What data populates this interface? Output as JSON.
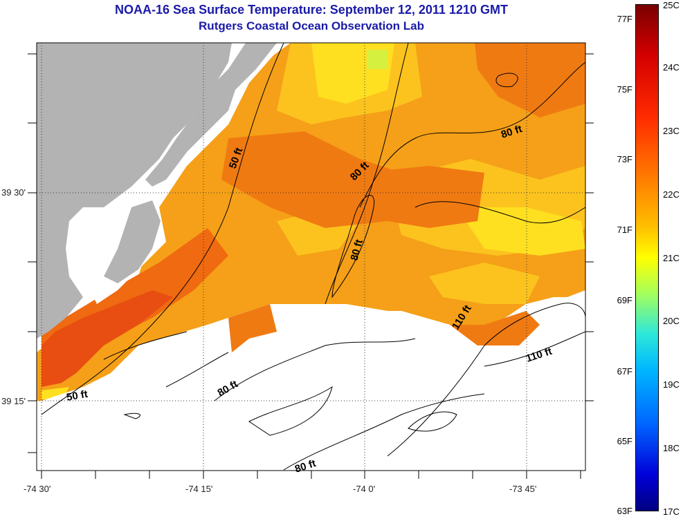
{
  "title": "NOAA-16 Sea Surface Temperature:  September 12, 2011 1210 GMT",
  "subtitle": "Rutgers Coastal Ocean Observation Lab",
  "map": {
    "lat_labels": [
      "39 30'",
      "39 15'"
    ],
    "lon_labels": [
      "-74 30'",
      "-74 15'",
      "-74 0'",
      "-73 45'"
    ],
    "contour_labels": [
      "50 ft",
      "80 ft",
      "80 ft",
      "80 ft",
      "110 ft",
      "110 ft",
      "50 ft",
      "80 ft",
      "80 ft"
    ]
  },
  "colorbar": {
    "fahrenheit": [
      "77F",
      "75F",
      "73F",
      "71F",
      "69F",
      "67F",
      "65F",
      "63F"
    ],
    "celsius": [
      "25C",
      "24C",
      "23C",
      "22C",
      "21C",
      "20C",
      "19C",
      "18C",
      "17C"
    ]
  },
  "colors": {
    "land": "#b3b3b3",
    "title": "#1a1aa8",
    "cloud": "#ffffff"
  }
}
